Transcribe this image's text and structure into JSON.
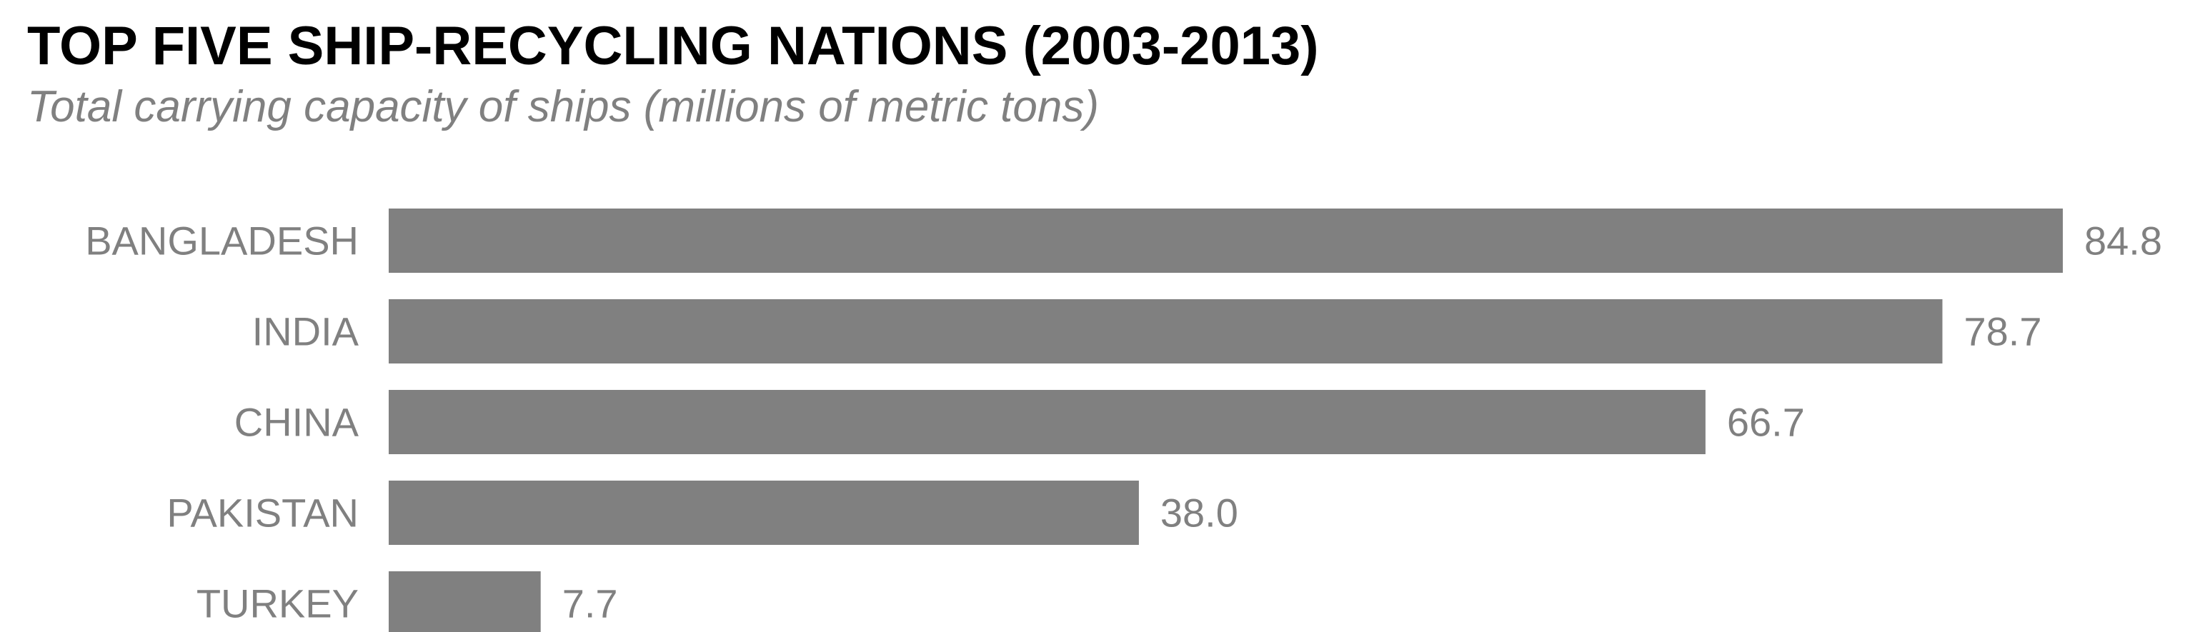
{
  "chart_data": {
    "type": "bar",
    "orientation": "horizontal",
    "title": "TOP FIVE SHIP-RECYCLING NATIONS (2003-2013)",
    "subtitle": "Total carrying capacity of ships (millions of metric tons)",
    "xlabel": "",
    "ylabel": "",
    "categories": [
      "BANGLADESH",
      "INDIA",
      "CHINA",
      "PAKISTAN",
      "TURKEY"
    ],
    "values": [
      84.8,
      78.7,
      66.7,
      38.0,
      7.7
    ],
    "data_labels": [
      "84.8",
      "78.7",
      "66.7",
      "38.0",
      "7.7"
    ],
    "xlim": [
      0,
      84.8
    ],
    "grid": false,
    "legend": "none",
    "colors": {
      "bar": "#808080",
      "label": "#808080",
      "title": "#000000"
    }
  }
}
